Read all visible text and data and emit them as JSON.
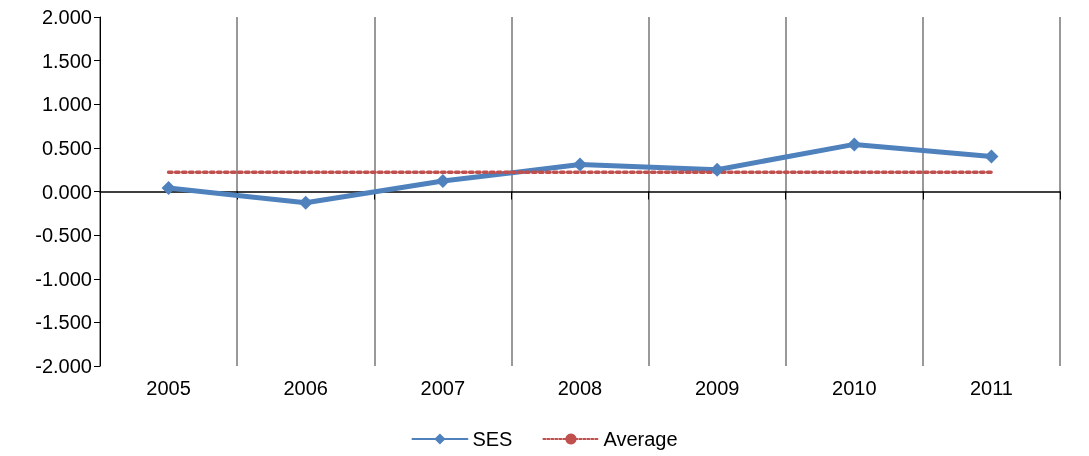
{
  "chart_data": {
    "type": "line",
    "categories": [
      "2005",
      "2006",
      "2007",
      "2008",
      "2009",
      "2010",
      "2011"
    ],
    "series": [
      {
        "name": "SES",
        "color": "#4f81bd",
        "values": [
          0.04,
          -0.13,
          0.12,
          0.31,
          0.25,
          0.54,
          0.4
        ],
        "marker": "diamond",
        "line_style": "solid"
      },
      {
        "name": "Average",
        "color": "#c0504d",
        "values": [
          0.22,
          0.22,
          0.22,
          0.22,
          0.22,
          0.22,
          0.22
        ],
        "marker": "none",
        "line_style": "dotted"
      }
    ],
    "ylim": [
      -2,
      2
    ],
    "yticks": [
      {
        "value": -2,
        "label": "-2.000"
      },
      {
        "value": -1.5,
        "label": "-1.500"
      },
      {
        "value": -1,
        "label": "-1.000"
      },
      {
        "value": -0.5,
        "label": "-0.500"
      },
      {
        "value": 0,
        "label": "0.000"
      },
      {
        "value": 0.5,
        "label": "0.500"
      },
      {
        "value": 1,
        "label": "1.000"
      },
      {
        "value": 1.5,
        "label": "1.500"
      },
      {
        "value": 2,
        "label": "2.000"
      }
    ],
    "grid": "x",
    "legend": "bottom"
  }
}
